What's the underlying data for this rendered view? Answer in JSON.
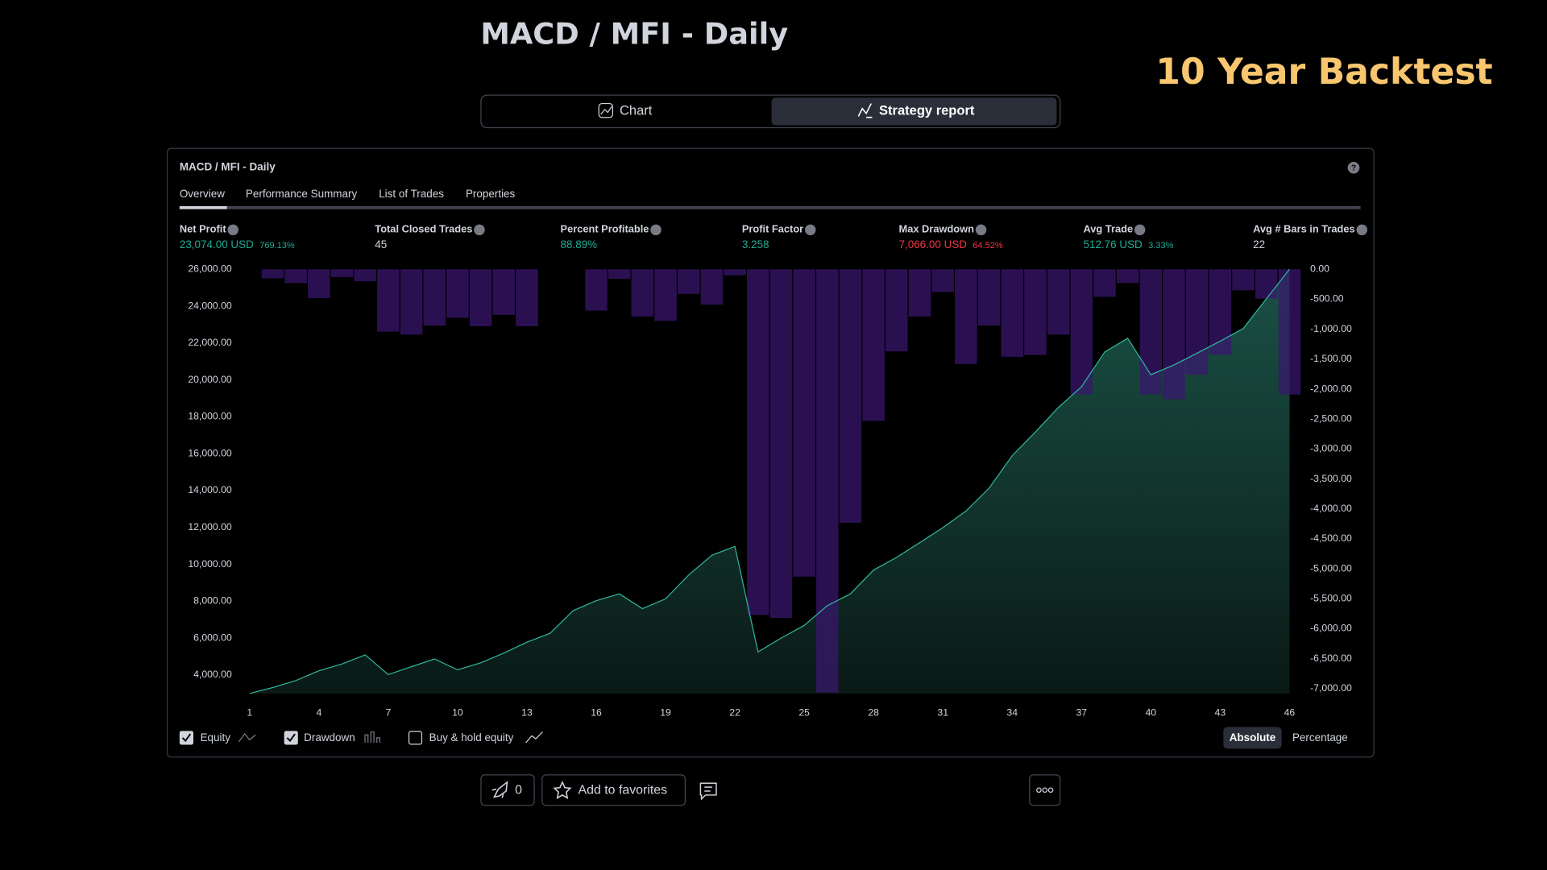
{
  "header": {
    "title": "MACD / MFI - Daily",
    "badge": "10 Year Backtest"
  },
  "tabs": {
    "chart": "Chart",
    "strategy_report": "Strategy report"
  },
  "report": {
    "title": "MACD / MFI - Daily",
    "tabs": [
      "Overview",
      "Performance Summary",
      "List of Trades",
      "Properties"
    ],
    "stats": [
      {
        "label": "Net Profit",
        "value": "23,074.00 USD",
        "extra": "769.13%",
        "tone": "green"
      },
      {
        "label": "Total Closed Trades",
        "value": "45",
        "tone": "plain"
      },
      {
        "label": "Percent Profitable",
        "value": "88.89%",
        "tone": "green"
      },
      {
        "label": "Profit Factor",
        "value": "3.258",
        "tone": "green"
      },
      {
        "label": "Max Drawdown",
        "value": "7,066.00 USD",
        "extra": "64.52%",
        "tone": "red"
      },
      {
        "label": "Avg Trade",
        "value": "512.76 USD",
        "extra": "3.33%",
        "tone": "green"
      },
      {
        "label": "Avg # Bars in Trades",
        "value": "22",
        "tone": "plain"
      }
    ],
    "buy_hold": "Buy & hold equity",
    "modes": [
      "Absolute",
      "Percentage"
    ]
  },
  "footer": {
    "boosts": "0",
    "favorites": "Add to favorites"
  },
  "chart_data": {
    "type": "combo",
    "x": [
      1,
      2,
      3,
      4,
      5,
      6,
      7,
      8,
      9,
      10,
      11,
      12,
      13,
      14,
      15,
      16,
      17,
      18,
      19,
      20,
      21,
      22,
      23,
      24,
      25,
      26,
      27,
      28,
      29,
      30,
      31,
      32,
      33,
      34,
      35,
      36,
      37,
      38,
      39,
      40,
      41,
      42,
      43,
      44,
      45,
      46
    ],
    "xlim": [
      0.5,
      46.5
    ],
    "xticks": [
      1,
      4,
      7,
      10,
      13,
      16,
      19,
      22,
      25,
      28,
      31,
      34,
      37,
      40,
      43,
      46
    ],
    "ylim": [
      3000,
      26000
    ],
    "yticks": [
      {
        "value": 4000,
        "label": "4,000.00"
      },
      {
        "value": 6000,
        "label": "6,000.00"
      },
      {
        "value": 8000,
        "label": "8,000.00"
      },
      {
        "value": 10000,
        "label": "10,000.00"
      },
      {
        "value": 12000,
        "label": "12,000.00"
      },
      {
        "value": 14000,
        "label": "14,000.00"
      },
      {
        "value": 16000,
        "label": "16,000.00"
      },
      {
        "value": 18000,
        "label": "18,000.00"
      },
      {
        "value": 20000,
        "label": "20,000.00"
      },
      {
        "value": 22000,
        "label": "22,000.00"
      },
      {
        "value": 24000,
        "label": "24,000.00"
      },
      {
        "value": 26000,
        "label": "26,000.00"
      }
    ],
    "y2lim": [
      -7080,
      0
    ],
    "y2ticks": [
      {
        "value": 0,
        "label": "0.00"
      },
      {
        "value": -500,
        "label": "-500.00"
      },
      {
        "value": -1000,
        "label": "-1,000.00"
      },
      {
        "value": -1500,
        "label": "-1,500.00"
      },
      {
        "value": -2000,
        "label": "-2,000.00"
      },
      {
        "value": -2500,
        "label": "-2,500.00"
      },
      {
        "value": -3000,
        "label": "-3,000.00"
      },
      {
        "value": -3500,
        "label": "-3,500.00"
      },
      {
        "value": -4000,
        "label": "-4,000.00"
      },
      {
        "value": -4500,
        "label": "-4,500.00"
      },
      {
        "value": -5000,
        "label": "-5,000.00"
      },
      {
        "value": -5500,
        "label": "-5,500.00"
      },
      {
        "value": -6000,
        "label": "-6,000.00"
      },
      {
        "value": -6500,
        "label": "-6,500.00"
      },
      {
        "value": -7000,
        "label": "-7,000.00"
      }
    ],
    "series": [
      {
        "name": "Equity",
        "kind": "area",
        "color": "#2fb79e",
        "values": [
          3000,
          3320,
          3700,
          4230,
          4600,
          5090,
          4020,
          4450,
          4870,
          4280,
          4660,
          5190,
          5780,
          6260,
          7490,
          8030,
          8400,
          7600,
          8130,
          9420,
          10490,
          10970,
          5250,
          6000,
          6690,
          7760,
          8400,
          9690,
          10380,
          11180,
          11990,
          12890,
          14130,
          15890,
          17170,
          18510,
          19630,
          21510,
          22260,
          20280,
          20810,
          21450,
          22100,
          22790,
          24400,
          26000
        ]
      },
      {
        "name": "Drawdown",
        "kind": "bar",
        "axis": "y2",
        "color": "#3a1670",
        "values": [
          0,
          -150,
          -230,
          -480,
          -130,
          -200,
          -1040,
          -1090,
          -940,
          -810,
          -950,
          -760,
          -950,
          0,
          0,
          -690,
          -160,
          -790,
          -860,
          -410,
          -590,
          -100,
          -5770,
          -5820,
          -5130,
          -7066,
          -4230,
          -2530,
          -1370,
          -790,
          -380,
          -1580,
          -940,
          -1460,
          -1430,
          -1090,
          -2090,
          -460,
          -230,
          -2090,
          -2170,
          -1760,
          -1430,
          -350,
          -490,
          -2090
        ]
      }
    ]
  }
}
